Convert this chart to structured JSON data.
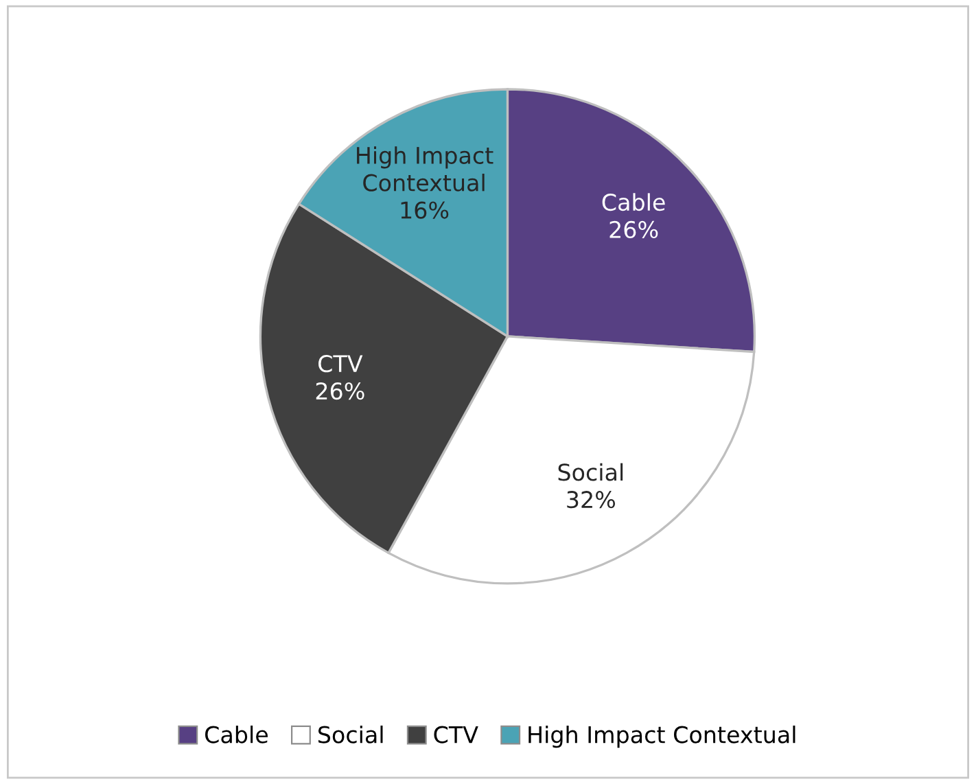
{
  "chart_data": {
    "type": "pie",
    "categories": [
      "Cable",
      "Social",
      "CTV",
      "High Impact Contextual"
    ],
    "values": [
      26,
      32,
      26,
      16
    ],
    "value_labels": [
      "26%",
      "32%",
      "26%",
      "16%"
    ],
    "colors": [
      "#574083",
      "#ffffff",
      "#404040",
      "#4ba3b5"
    ],
    "legend": "bottom"
  }
}
